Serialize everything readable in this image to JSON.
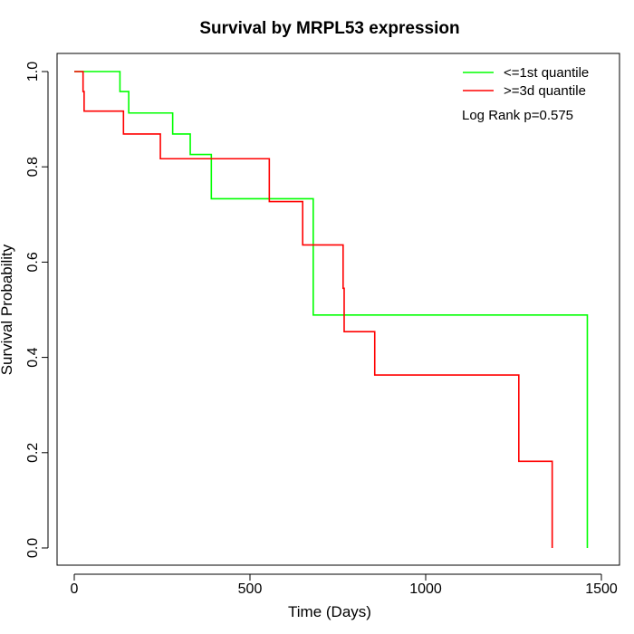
{
  "chart_data": {
    "type": "line",
    "title": "Survival by MRPL53 expression",
    "xlabel": "Time (Days)",
    "ylabel": "Survival Probability",
    "xlim": [
      0,
      1500
    ],
    "ylim": [
      0.0,
      1.0
    ],
    "x_ticks": [
      0,
      500,
      1000,
      1500
    ],
    "x_tick_labels": [
      "0",
      "500",
      "1000",
      "1500"
    ],
    "y_ticks": [
      0.0,
      0.2,
      0.4,
      0.6,
      0.8,
      1.0
    ],
    "y_tick_labels": [
      "0.0",
      "0.2",
      "0.4",
      "0.6",
      "0.8",
      "1.0"
    ],
    "grid": false,
    "legend_position": "top-right",
    "annotation": "Log Rank p=0.575",
    "series": [
      {
        "name": "<=1st quantile",
        "color": "#00ff00",
        "step": true,
        "x": [
          0,
          130,
          155,
          280,
          330,
          390,
          680,
          1460,
          1460
        ],
        "y": [
          1.0,
          0.958,
          0.913,
          0.869,
          0.826,
          0.733,
          0.489,
          0.489,
          0.0
        ]
      },
      {
        "name": ">=3d quantile",
        "color": "#ff0000",
        "step": true,
        "x": [
          0,
          25,
          28,
          140,
          245,
          555,
          650,
          765,
          768,
          855,
          1265,
          1360,
          1360
        ],
        "y": [
          1.0,
          0.958,
          0.917,
          0.869,
          0.817,
          0.727,
          0.636,
          0.545,
          0.454,
          0.363,
          0.182,
          0.182,
          0.0
        ]
      }
    ]
  }
}
